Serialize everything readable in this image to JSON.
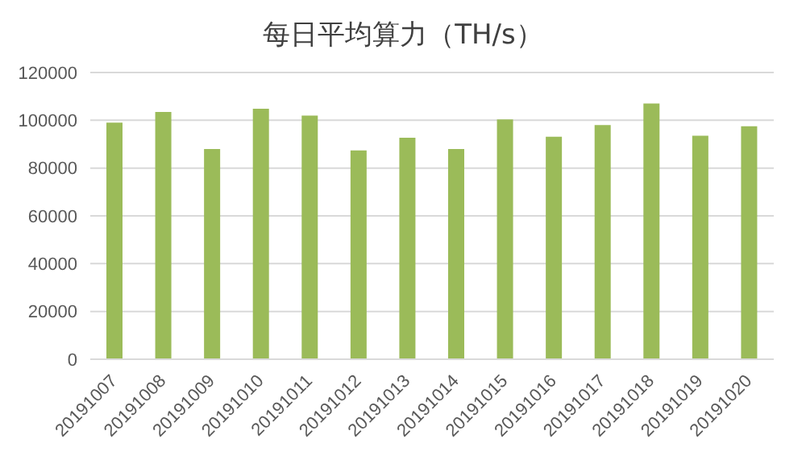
{
  "chart_data": {
    "type": "bar",
    "title": "每日平均算力（TH/s）",
    "categories": [
      "20191007",
      "20191008",
      "20191009",
      "20191010",
      "20191011",
      "20191012",
      "20191013",
      "20191014",
      "20191015",
      "20191016",
      "20191017",
      "20191018",
      "20191019",
      "20191020"
    ],
    "values": [
      99000,
      103500,
      88000,
      104800,
      102000,
      87400,
      92700,
      88000,
      100400,
      93100,
      98000,
      107000,
      93500,
      97500
    ],
    "color": "#9bbb59",
    "ylim": [
      0,
      120000
    ],
    "yticks": [
      0,
      20000,
      40000,
      60000,
      80000,
      100000,
      120000
    ],
    "grid": "y"
  }
}
